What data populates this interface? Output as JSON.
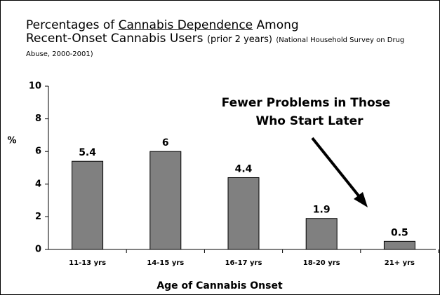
{
  "chart_data": {
    "type": "bar",
    "title": [
      "Percentages of",
      "Cannabis Dependence",
      "Among",
      "Recent-Onset Cannabis Users",
      "(prior 2 years)",
      "(National Household Survey on Drug Abuse, 2000-2001)"
    ],
    "annotation": [
      "Fewer Problems in Those",
      "Who Start Later"
    ],
    "x_label": "Age of Cannabis Onset",
    "y_label": "%",
    "categories": [
      "11-13 yrs",
      "14-15 yrs",
      "16-17 yrs",
      "18-20 yrs",
      "21+ yrs"
    ],
    "values": [
      5.4,
      6,
      4.4,
      1.9,
      0.5
    ],
    "color": "#808080",
    "ylim": [
      0,
      10
    ],
    "yticks": [
      0,
      2,
      4,
      6,
      8,
      10
    ],
    "grid": false
  }
}
